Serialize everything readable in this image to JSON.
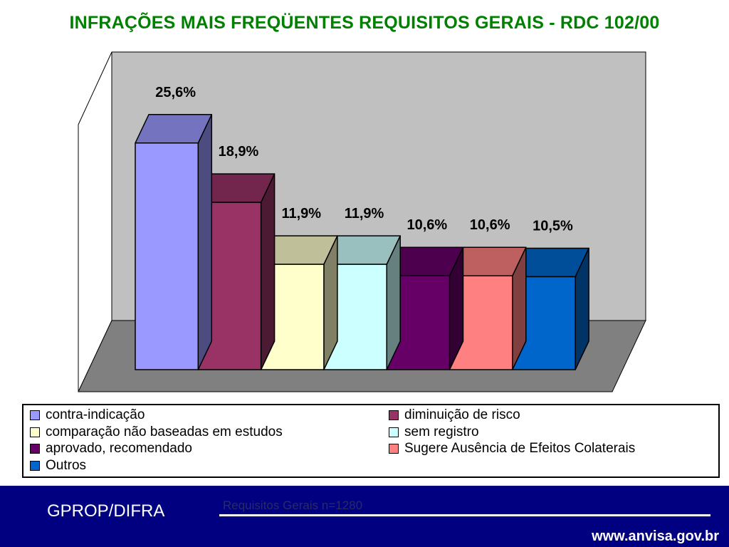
{
  "title": "INFRAÇÕES MAIS FREQÜENTES REQUISITOS GERAIS  - RDC 102/00",
  "chart_data": {
    "type": "bar",
    "categories": [
      "contra-indicação",
      "diminuição de risco",
      "comparação não baseadas em estudos",
      "sem registro",
      "aprovado, recomendado",
      "Sugere Ausência de Efeitos Colaterais",
      "Outros"
    ],
    "values": [
      25.6,
      18.9,
      11.9,
      11.9,
      10.6,
      10.6,
      10.5
    ],
    "data_labels": [
      "25,6%",
      "18,9%",
      "11,9%",
      "11,9%",
      "10,6%",
      "10,6%",
      "10,5%"
    ],
    "unit": "%",
    "legend_position": "bottom",
    "grid": false,
    "style": "3d",
    "colors": {
      "front": [
        "#9999ff",
        "#993366",
        "#ffffcc",
        "#ccffff",
        "#660066",
        "#ff8080",
        "#0066cc"
      ],
      "top": [
        "#7373bf",
        "#73264d",
        "#bfbf99",
        "#99bfbf",
        "#4d004d",
        "#bf6060",
        "#004d99"
      ],
      "side": [
        "#4c4c80",
        "#4d1a33",
        "#808066",
        "#668080",
        "#330033",
        "#804040",
        "#003366"
      ],
      "back_wall": "#c0c0c0",
      "floor": "#808080"
    }
  },
  "legend": {
    "items": [
      {
        "label": "contra-indicação",
        "color": "#9999ff"
      },
      {
        "label": "diminuição de risco",
        "color": "#993366"
      },
      {
        "label": "comparação não baseadas em estudos",
        "color": "#ffffcc"
      },
      {
        "label": "sem registro",
        "color": "#ccffff"
      },
      {
        "label": "aprovado, recomendado",
        "color": "#660066"
      },
      {
        "label": "Sugere Ausência de Efeitos Colaterais",
        "color": "#ff8080"
      },
      {
        "label": "Outros",
        "color": "#0066cc"
      }
    ]
  },
  "footer": {
    "org": "GPROP/DIFRA",
    "note": "Requisitos Gerais n=1280",
    "url": "www.anvisa.gov.br"
  }
}
